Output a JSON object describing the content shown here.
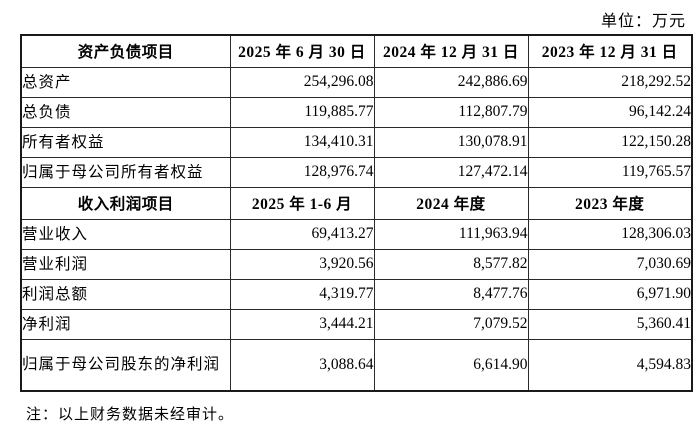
{
  "unit_label": "单位：万元",
  "note": "注：以上财务数据未经审计。",
  "balance_sheet": {
    "header": {
      "item": "资产负债项目",
      "col1": "2025 年 6 月 30 日",
      "col2": "2024 年 12 月 31 日",
      "col3": "2023 年 12 月 31 日"
    },
    "rows": [
      {
        "label": "总资产",
        "values": [
          "254,296.08",
          "242,886.69",
          "218,292.52"
        ]
      },
      {
        "label": "总负债",
        "values": [
          "119,885.77",
          "112,807.79",
          "96,142.24"
        ]
      },
      {
        "label": "所有者权益",
        "values": [
          "134,410.31",
          "130,078.91",
          "122,150.28"
        ]
      },
      {
        "label": "归属于母公司所有者权益",
        "values": [
          "128,976.74",
          "127,472.14",
          "119,765.57"
        ]
      }
    ]
  },
  "income_statement": {
    "header": {
      "item": "收入利润项目",
      "col1": "2025 年 1-6 月",
      "col2": "2024 年度",
      "col3": "2023 年度"
    },
    "rows": [
      {
        "label": "营业收入",
        "values": [
          "69,413.27",
          "111,963.94",
          "128,306.03"
        ]
      },
      {
        "label": "营业利润",
        "values": [
          "3,920.56",
          "8,577.82",
          "7,030.69"
        ]
      },
      {
        "label": "利润总额",
        "values": [
          "4,319.77",
          "8,477.76",
          "6,971.90"
        ]
      },
      {
        "label": "净利润",
        "values": [
          "3,444.21",
          "7,079.52",
          "5,360.41"
        ]
      },
      {
        "label": "归属于母公司股东的净利润",
        "values": [
          "3,088.64",
          "6,614.90",
          "4,594.83"
        ]
      }
    ]
  }
}
